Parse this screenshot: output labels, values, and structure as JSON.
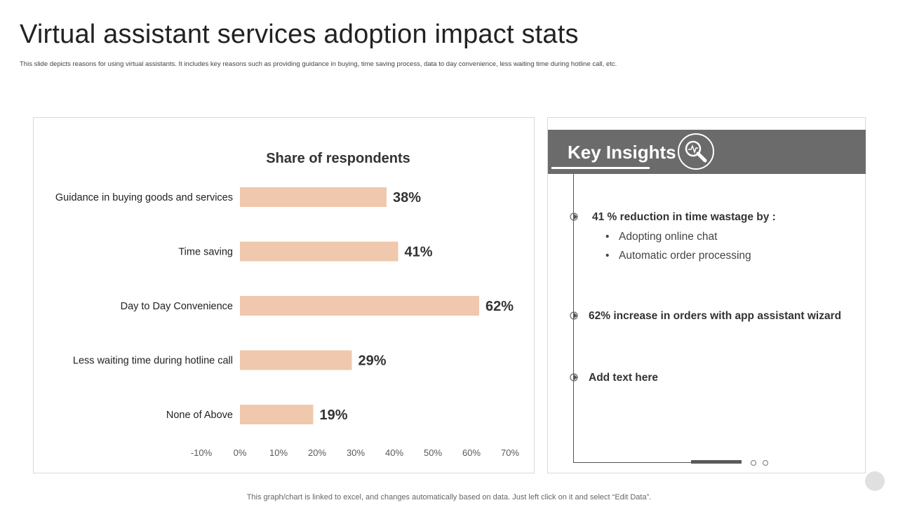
{
  "page": {
    "title": "Virtual assistant services adoption impact stats",
    "subtitle": "This slide depicts reasons for using virtual assistants. It includes key reasons such as providing guidance in buying, time saving process, data to day convenience, less waiting time during hotline call, etc.",
    "footnote": "This graph/chart is linked to excel,  and changes automatically based on data. Just left click on it and select “Edit Data”."
  },
  "chart_data": {
    "type": "bar",
    "orientation": "horizontal",
    "title": "Share of respondents",
    "categories": [
      "Guidance in buying goods and services",
      "Time saving",
      "Day to Day Convenience",
      "Less waiting time during hotline call",
      "None of Above"
    ],
    "values": [
      38,
      41,
      62,
      29,
      19
    ],
    "value_labels": [
      "38%",
      "41%",
      "62%",
      "29%",
      "19%"
    ],
    "xlim": [
      -10,
      70
    ],
    "xticks": [
      -10,
      0,
      10,
      20,
      30,
      40,
      50,
      60,
      70
    ],
    "xtick_labels": [
      "-10%",
      "0%",
      "10%",
      "20%",
      "30%",
      "40%",
      "50%",
      "60%",
      "70%"
    ],
    "bar_color": "#f0c8ad",
    "grid": false
  },
  "insights": {
    "title": "Key Insights",
    "header_icon": "magnifier-chart-icon",
    "items": [
      {
        "heading": "41 % reduction in time wastage by :",
        "bullets": [
          "Adopting online chat",
          "Automatic order processing"
        ]
      },
      {
        "heading": "62% increase in orders with app assistant wizard"
      },
      {
        "heading": "Add text here"
      }
    ]
  },
  "colors": {
    "header_bg": "#6b6b6b",
    "text_dark": "#333333",
    "bar": "#f0c8ad"
  }
}
